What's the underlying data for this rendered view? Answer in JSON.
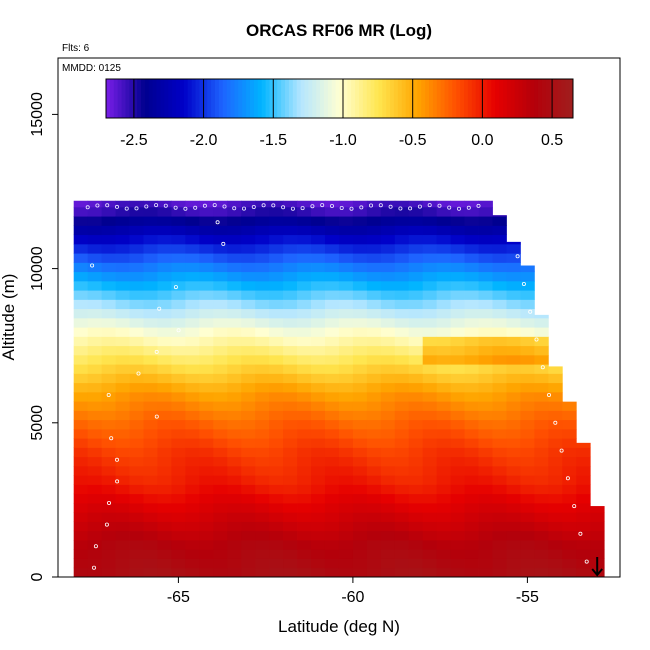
{
  "chart_data": {
    "type": "heatmap",
    "title": "ORCAS RF06 MR (Log)",
    "xlabel": "Latitude (deg N)",
    "ylabel": "Altitude (m)",
    "notes": [
      "Flts: 6",
      "MMDD: 0125"
    ],
    "xlim": [
      -68,
      -52
    ],
    "ylim": [
      0,
      16800
    ],
    "x_ticks": [
      -65,
      -60,
      -55
    ],
    "x_tick_labels": [
      "-65",
      "-60",
      "-55"
    ],
    "y_ticks": [
      0,
      5000,
      10000,
      15000
    ],
    "y_tick_labels": [
      "0",
      "5000",
      "10000",
      "15000"
    ],
    "colorbar": {
      "min": -2.7,
      "max": 0.65,
      "ticks": [
        -2.5,
        -2.0,
        -1.5,
        -1.0,
        -0.5,
        0.0,
        0.5
      ],
      "tick_labels": [
        "-2.5",
        "-2.0",
        "-1.5",
        "-1.0",
        "-0.5",
        "0.0",
        "0.5"
      ],
      "colors": [
        "#7a1fe8",
        "#00008f",
        "#0000c8",
        "#1e64ff",
        "#00b4ff",
        "#b4e6ff",
        "#ffffd2",
        "#ffe650",
        "#ffa500",
        "#ff5000",
        "#e60000",
        "#b4000a",
        "#a01e1e"
      ]
    },
    "altitude_profile": {
      "altitudes_m": [
        0,
        1000,
        2000,
        3000,
        4000,
        5000,
        6000,
        7000,
        7500,
        8000,
        9000,
        10000,
        11000,
        12000
      ],
      "log_mr": [
        0.5,
        0.4,
        0.2,
        0.0,
        -0.1,
        -0.25,
        -0.45,
        -0.75,
        -0.9,
        -1.05,
        -1.4,
        -1.75,
        -2.15,
        -2.6
      ]
    },
    "top_edge": {
      "latitude": [
        -68,
        -56.0,
        -55.7,
        -55.5,
        -55.2,
        -54.8,
        -54.6,
        -54.4,
        -53.7,
        -53.3,
        -53.1
      ],
      "altitude_m": [
        12200,
        12200,
        11500,
        11000,
        10600,
        9600,
        8500,
        7400,
        5400,
        4000,
        2300
      ]
    },
    "arrow_marker": {
      "latitude": -53.0
    }
  }
}
